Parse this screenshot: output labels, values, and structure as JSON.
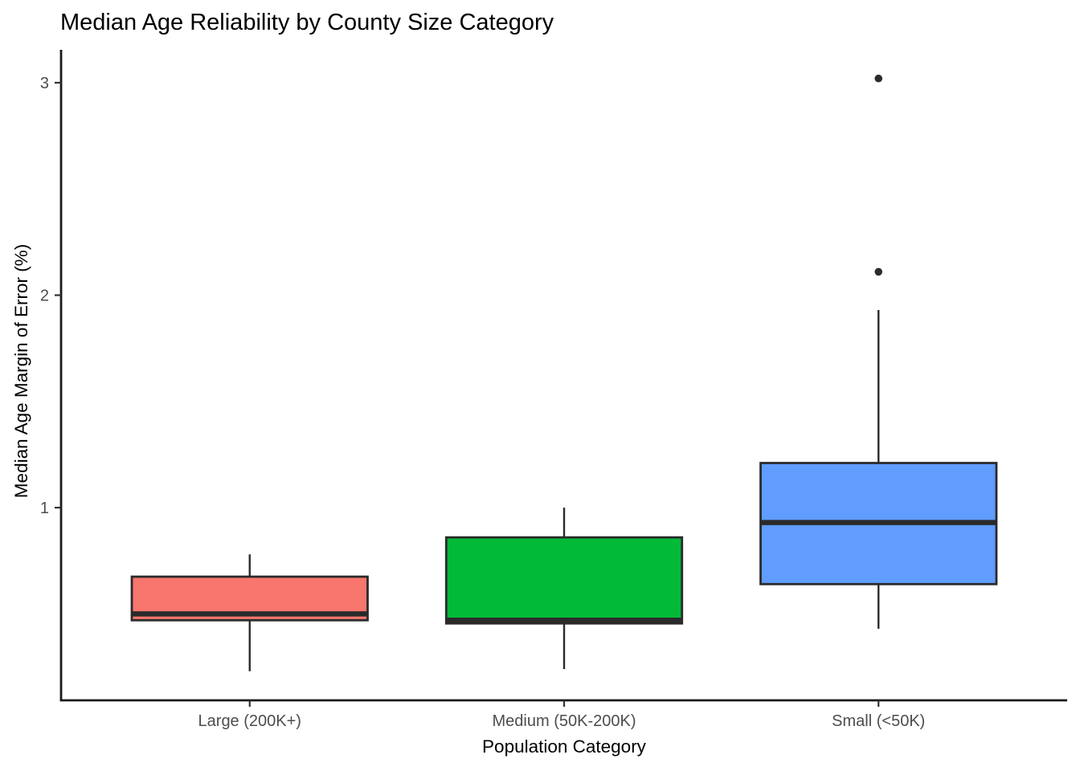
{
  "chart_data": {
    "type": "boxplot",
    "title": "Median Age Reliability by County Size Category",
    "xlabel": "Population Category",
    "ylabel": "Median Age Margin of Error (%)",
    "categories": [
      "Large (200K+)",
      "Medium (50K-200K)",
      "Small (<50K)"
    ],
    "yticks": [
      "1",
      "2",
      "3"
    ],
    "ylim": [
      0.093,
      3.155
    ],
    "grid": false,
    "legend_position": "none",
    "series": [
      {
        "name": "large",
        "category": "Large (200K+)",
        "fill": "#F8766D",
        "whisker_low": 0.23,
        "q1": 0.47,
        "median": 0.5,
        "q3": 0.675,
        "whisker_high": 0.78,
        "outliers": []
      },
      {
        "name": "medium",
        "category": "Medium (50K-200K)",
        "fill": "#00BA38",
        "whisker_low": 0.24,
        "q1": 0.455,
        "median": 0.47,
        "q3": 0.86,
        "whisker_high": 1.0,
        "outliers": []
      },
      {
        "name": "small",
        "category": "Small (<50K)",
        "fill": "#619CFF",
        "whisker_low": 0.43,
        "q1": 0.64,
        "median": 0.93,
        "q3": 1.21,
        "whisker_high": 1.93,
        "outliers": [
          2.11,
          3.02
        ]
      }
    ],
    "colors": {
      "box_border": "#2B2B2B",
      "median_line": "#2B2B2B",
      "outlier": "#2B2B2B",
      "axis_line": "#1A1A1A",
      "tick_mark": "#333333",
      "tick_label": "#4D4D4D",
      "title": "#000000",
      "axis_title": "#000000",
      "background": "#FFFFFF"
    }
  }
}
